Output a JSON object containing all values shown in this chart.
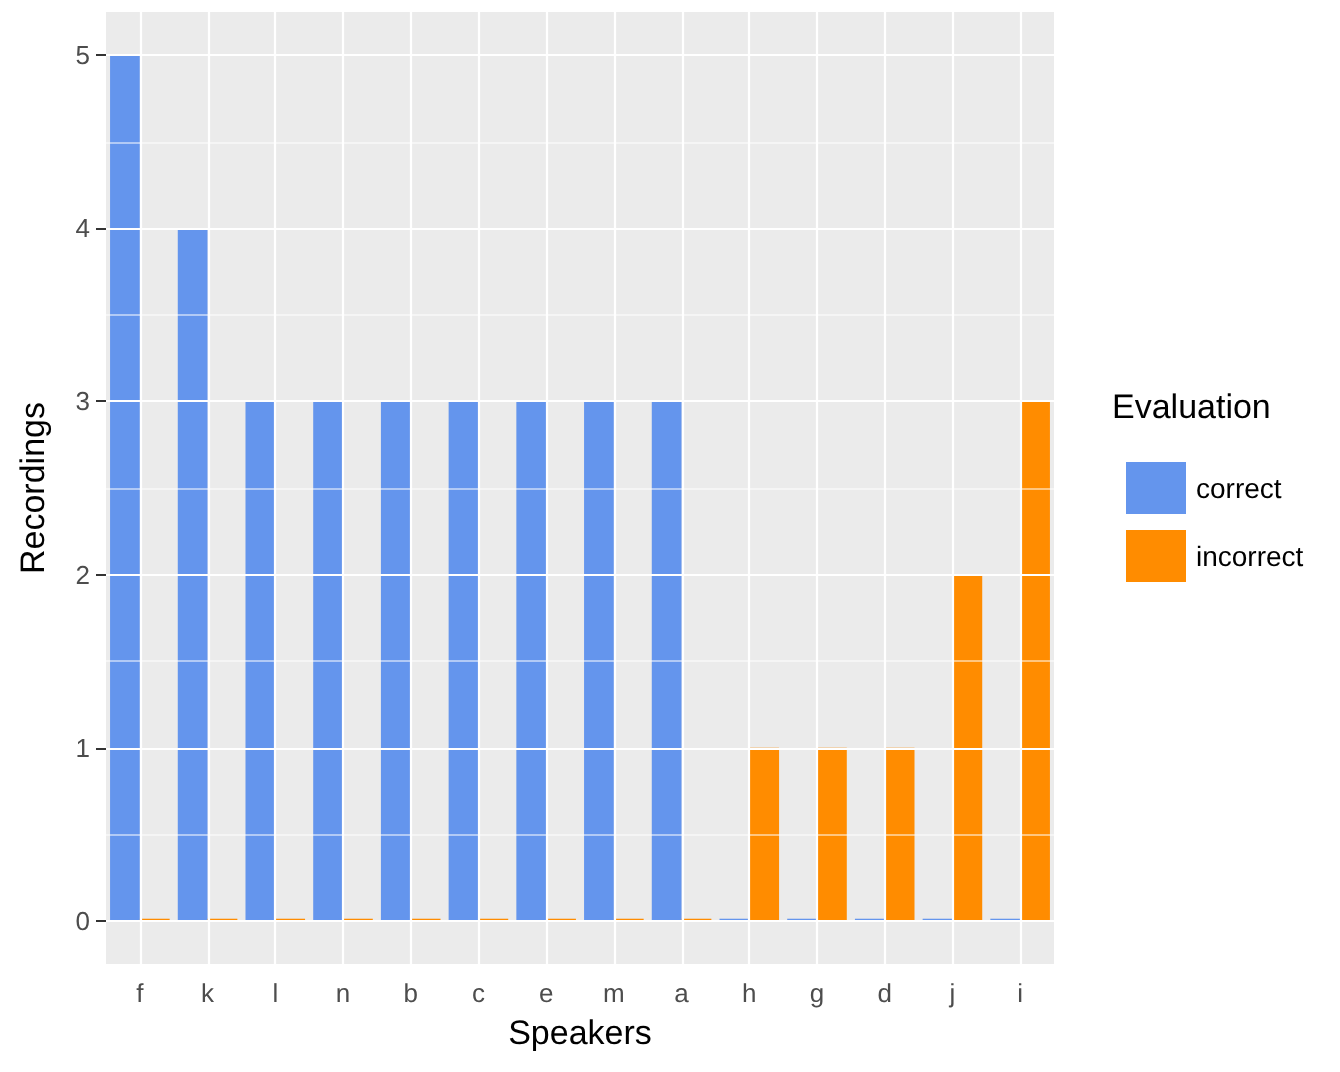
{
  "chart_data": {
    "type": "bar",
    "xlabel": "Speakers",
    "ylabel": "Recordings",
    "legend_title": "Evaluation",
    "categories": [
      "f",
      "k",
      "l",
      "n",
      "b",
      "c",
      "e",
      "m",
      "a",
      "h",
      "g",
      "d",
      "j",
      "i"
    ],
    "series": [
      {
        "name": "correct",
        "color": "#6495ed",
        "values": [
          5,
          4,
          3,
          3,
          3,
          3,
          3,
          3,
          3,
          0,
          0,
          0,
          0,
          0
        ]
      },
      {
        "name": "incorrect",
        "color": "#ff8c00",
        "values": [
          0,
          0,
          0,
          0,
          0,
          0,
          0,
          0,
          0,
          1,
          1,
          1,
          2,
          3
        ]
      }
    ],
    "ylim": [
      -0.25,
      5.25
    ],
    "yticks": [
      0,
      1,
      2,
      3,
      4,
      5
    ],
    "grid": true,
    "legend": "right"
  }
}
